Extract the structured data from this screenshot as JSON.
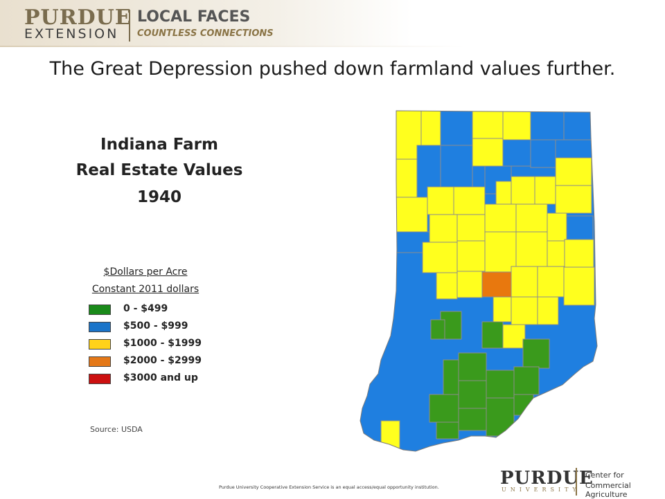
{
  "header": {
    "logo_purdue": "PURDUE",
    "logo_extension": "EXTENSION",
    "tagline_main": "LOCAL FACES",
    "tagline_sub": "COUNTLESS CONNECTIONS"
  },
  "slide_title": "The Great Depression pushed down farmland values further.",
  "map_title": {
    "line1": "Indiana Farm",
    "line2": "Real Estate Values",
    "line3": "1940"
  },
  "legend": {
    "heading1": "$Dollars per Acre",
    "heading2": "Constant 2011 dollars",
    "items": [
      {
        "label": "0 - $499",
        "color": "#1a8a1a"
      },
      {
        "label": "$500 - $999",
        "color": "#1a74c9"
      },
      {
        "label": "$1000 - $1999",
        "color": "#ffd21a"
      },
      {
        "label": "$2000 - $2999",
        "color": "#e47818"
      },
      {
        "label": "$3000 and up",
        "color": "#cc1010"
      }
    ]
  },
  "map_colors": {
    "green": "#3a9a1c",
    "blue": "#1f7fe0",
    "yellow": "#ffff1e",
    "orange": "#e8780e",
    "border": "#888888"
  },
  "source": "Source: USDA",
  "footer": {
    "note": "Purdue University Cooperative Extension Service is an equal access/equal opportunity institution.",
    "purdue": "PURDUE",
    "university": "UNIVERSITY",
    "center_line1": "Center for",
    "center_line2": "Commercial Agriculture"
  }
}
